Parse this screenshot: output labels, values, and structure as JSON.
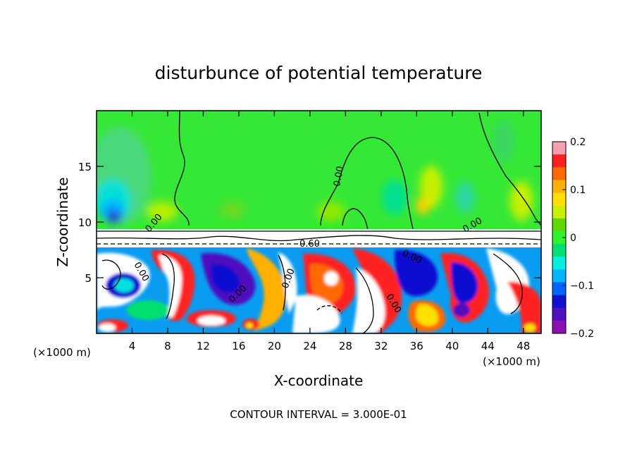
{
  "chart_data": {
    "type": "heatmap",
    "title": "disturbunce of potential temperature",
    "xlabel": "X-coordinate",
    "ylabel": "Z-coordinate",
    "x_unit": "(×1000 m)",
    "z_unit": "(×1000 m)",
    "xlim": [
      0,
      50
    ],
    "ylim": [
      0,
      20
    ],
    "x_ticks": [
      4,
      8,
      12,
      16,
      20,
      24,
      28,
      32,
      36,
      40,
      44,
      48
    ],
    "y_ticks": [
      5,
      10,
      15
    ],
    "colorbar": {
      "range": [
        -0.2,
        0.2
      ],
      "tick_values": [
        0.2,
        0.1,
        0,
        -0.1,
        -0.2
      ],
      "tick_labels": [
        "0.2",
        "0.1",
        "0",
        "−0.1",
        "−0.2"
      ],
      "colors": [
        "#f4a0b0",
        "#ff2020",
        "#ff6a00",
        "#ffb000",
        "#ffe000",
        "#c8f000",
        "#5fd800",
        "#30f030",
        "#00e070",
        "#00f0e0",
        "#00b4ff",
        "#0064ff",
        "#1010d0",
        "#5010c0",
        "#8a10b0"
      ]
    },
    "contour_labels": [
      "0.00",
      "0.00",
      "0.60",
      "0.00",
      "0.00",
      "0.00",
      "0.00",
      "0.00",
      "0.00"
    ],
    "contour_interval_text": "CONTOUR INTERVAL = 3.000E-01"
  }
}
